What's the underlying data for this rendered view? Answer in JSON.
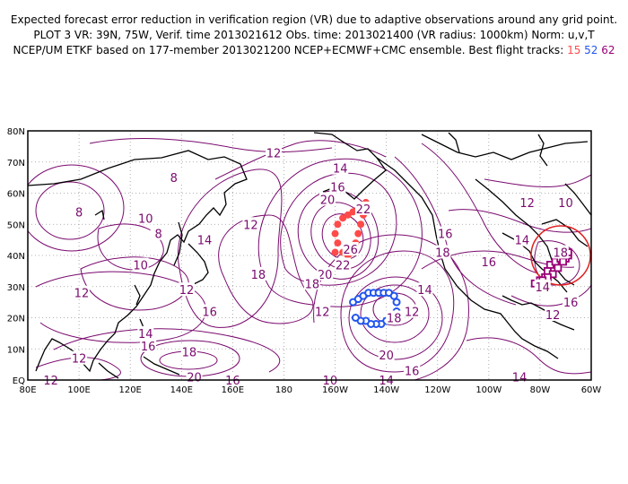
{
  "header": {
    "line1": "Expected forecast error reduction in verification region (VR) due to adaptive observations around any grid point.",
    "line2": "PLOT 3 VR: 39N, 75W, Verif. time 2013021612 Obs. time: 2013021400 (VR radius: 1000km) Norm: u,v,T",
    "line3_prefix": "NCEP/UM ETKF based on 177-member 2013021200 NCEP+ECMWF+CMC ensemble. Best flight tracks:",
    "track_ids": [
      "15",
      "52",
      "62"
    ]
  },
  "colors": {
    "contour": "#7a0a6e",
    "coast": "#000000",
    "track_15": "#ff4a4a",
    "track_52": "#2255ee",
    "track_62": "#990077",
    "vr_circle": "#e02020"
  },
  "map": {
    "lon_range": [
      80,
      300
    ],
    "lat_range": [
      0,
      80
    ],
    "lat_ticks": [
      "EQ",
      "10N",
      "20N",
      "30N",
      "40N",
      "50N",
      "60N",
      "70N",
      "80N"
    ],
    "lon_ticks": [
      "80E",
      "100E",
      "120E",
      "140E",
      "160E",
      "180",
      "160W",
      "140W",
      "120W",
      "100W",
      "80W",
      "60W"
    ],
    "verification_region": {
      "lat": 39,
      "lon": 285,
      "radius_km": 1000
    },
    "contour_labels": [
      {
        "text": "12",
        "lon": 176,
        "lat": 73
      },
      {
        "text": "14",
        "lon": 202,
        "lat": 68
      },
      {
        "text": "16",
        "lon": 201,
        "lat": 62
      },
      {
        "text": "20",
        "lon": 197,
        "lat": 58
      },
      {
        "text": "22",
        "lon": 211,
        "lat": 55
      },
      {
        "text": "26",
        "lon": 206,
        "lat": 42
      },
      {
        "text": "22",
        "lon": 203,
        "lat": 37
      },
      {
        "text": "20",
        "lon": 196,
        "lat": 34
      },
      {
        "text": "18",
        "lon": 191,
        "lat": 31
      },
      {
        "text": "8",
        "lon": 137,
        "lat": 65
      },
      {
        "text": "10",
        "lon": 126,
        "lat": 52
      },
      {
        "text": "8",
        "lon": 100,
        "lat": 54
      },
      {
        "text": "8",
        "lon": 131,
        "lat": 47
      },
      {
        "text": "12",
        "lon": 167,
        "lat": 50
      },
      {
        "text": "14",
        "lon": 149,
        "lat": 45
      },
      {
        "text": "18",
        "lon": 170,
        "lat": 34
      },
      {
        "text": "10",
        "lon": 124,
        "lat": 37
      },
      {
        "text": "12",
        "lon": 101,
        "lat": 28
      },
      {
        "text": "12",
        "lon": 142,
        "lat": 29
      },
      {
        "text": "16",
        "lon": 151,
        "lat": 22
      },
      {
        "text": "14",
        "lon": 126,
        "lat": 15
      },
      {
        "text": "16",
        "lon": 127,
        "lat": 11
      },
      {
        "text": "18",
        "lon": 143,
        "lat": 9
      },
      {
        "text": "12",
        "lon": 100,
        "lat": 7
      },
      {
        "text": "20",
        "lon": 145,
        "lat": 1
      },
      {
        "text": "16",
        "lon": 160,
        "lat": 0
      },
      {
        "text": "12",
        "lon": 89,
        "lat": 0
      },
      {
        "text": "16",
        "lon": 243,
        "lat": 47
      },
      {
        "text": "18",
        "lon": 242,
        "lat": 41
      },
      {
        "text": "14",
        "lon": 235,
        "lat": 29
      },
      {
        "text": "12",
        "lon": 230,
        "lat": 22
      },
      {
        "text": "16",
        "lon": 260,
        "lat": 38
      },
      {
        "text": "12",
        "lon": 195,
        "lat": 22
      },
      {
        "text": "18",
        "lon": 223,
        "lat": 20
      },
      {
        "text": "20",
        "lon": 220,
        "lat": 8
      },
      {
        "text": "16",
        "lon": 230,
        "lat": 3
      },
      {
        "text": "14",
        "lon": 220,
        "lat": 0
      },
      {
        "text": "10",
        "lon": 198,
        "lat": 0
      },
      {
        "text": "14",
        "lon": 272,
        "lat": 1
      },
      {
        "text": "12",
        "lon": 275,
        "lat": 57
      },
      {
        "text": "10",
        "lon": 290,
        "lat": 57
      },
      {
        "text": "14",
        "lon": 273,
        "lat": 45
      },
      {
        "text": "18",
        "lon": 288,
        "lat": 41
      },
      {
        "text": "16",
        "lon": 292,
        "lat": 25
      },
      {
        "text": "12",
        "lon": 285,
        "lat": 21
      },
      {
        "text": "14",
        "lon": 281,
        "lat": 30
      }
    ],
    "tracks": {
      "15": [
        [
          200,
          41
        ],
        [
          201,
          44
        ],
        [
          200,
          47
        ],
        [
          201,
          50
        ],
        [
          203,
          52
        ],
        [
          205,
          53
        ],
        [
          207,
          54
        ],
        [
          209,
          55
        ],
        [
          211,
          56
        ],
        [
          212,
          57
        ],
        [
          211,
          53
        ],
        [
          210,
          50
        ],
        [
          209,
          47
        ],
        [
          208,
          44
        ],
        [
          207,
          41
        ],
        [
          205,
          40
        ],
        [
          203,
          41
        ]
      ],
      "52": [
        [
          207,
          25
        ],
        [
          209,
          26
        ],
        [
          211,
          27
        ],
        [
          213,
          28
        ],
        [
          215,
          28
        ],
        [
          217,
          28
        ],
        [
          219,
          28
        ],
        [
          221,
          28
        ],
        [
          223,
          27
        ],
        [
          224,
          25
        ],
        [
          224,
          22
        ],
        [
          222,
          20
        ],
        [
          220,
          19
        ],
        [
          218,
          18
        ],
        [
          216,
          18
        ],
        [
          214,
          18
        ],
        [
          212,
          19
        ],
        [
          210,
          19
        ],
        [
          208,
          20
        ]
      ],
      "62": [
        [
          278,
          31
        ],
        [
          280,
          32
        ],
        [
          282,
          33
        ],
        [
          283,
          35
        ],
        [
          284,
          37
        ],
        [
          286,
          38
        ],
        [
          288,
          39
        ],
        [
          290,
          39
        ],
        [
          291,
          40
        ],
        [
          291,
          41
        ],
        [
          289,
          38
        ],
        [
          287,
          36
        ],
        [
          285,
          34
        ],
        [
          283,
          33
        ],
        [
          281,
          32
        ]
      ]
    }
  }
}
